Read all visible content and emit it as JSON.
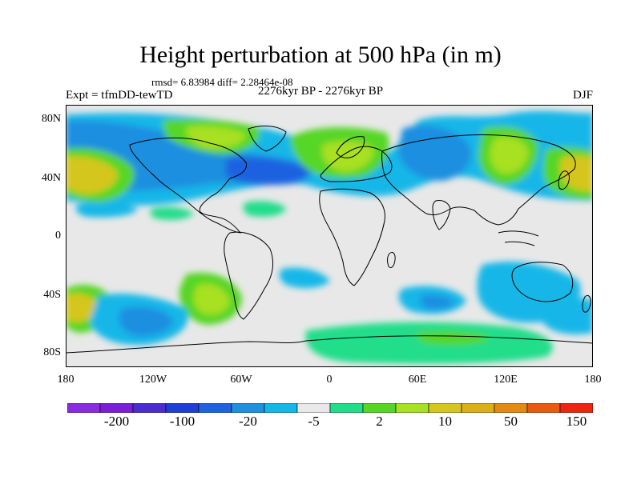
{
  "title": "Height perturbation at 500 hPa (in m)",
  "stats": "rmsd= 6.83984 diff= 2.28464e-08",
  "period": "2276kyr BP - 2276kyr BP",
  "experiment": "Expt = tfmDD-tewTD",
  "season": "DJF",
  "lat_ticks": [
    "80N",
    "40N",
    "0",
    "40S",
    "80S"
  ],
  "lon_ticks": [
    "180",
    "120W",
    "60W",
    "0",
    "60E",
    "120E",
    "180"
  ],
  "colorbar": {
    "colors": [
      "#8a2be2",
      "#7a1fd8",
      "#4b2cd0",
      "#1d3fd4",
      "#1e62e0",
      "#1f8fe0",
      "#14b7e8",
      "#e8e8e8",
      "#22dd8a",
      "#56d626",
      "#a8e022",
      "#d4c61e",
      "#dcae17",
      "#e48a12",
      "#e85a10",
      "#ec2610"
    ],
    "labels": [
      "-200",
      "-100",
      "-20",
      "-5",
      "2",
      "10",
      "50",
      "150"
    ]
  },
  "map_colors": {
    "background": "#e8e8e8",
    "neg_light": "#14b7e8",
    "neg_mid": "#1f8fe0",
    "neg_strong": "#1e62e0",
    "pos_light": "#22dd8a",
    "pos_mid": "#56d626",
    "pos_yellow": "#a8e022",
    "pos_strong": "#d4c61e"
  }
}
